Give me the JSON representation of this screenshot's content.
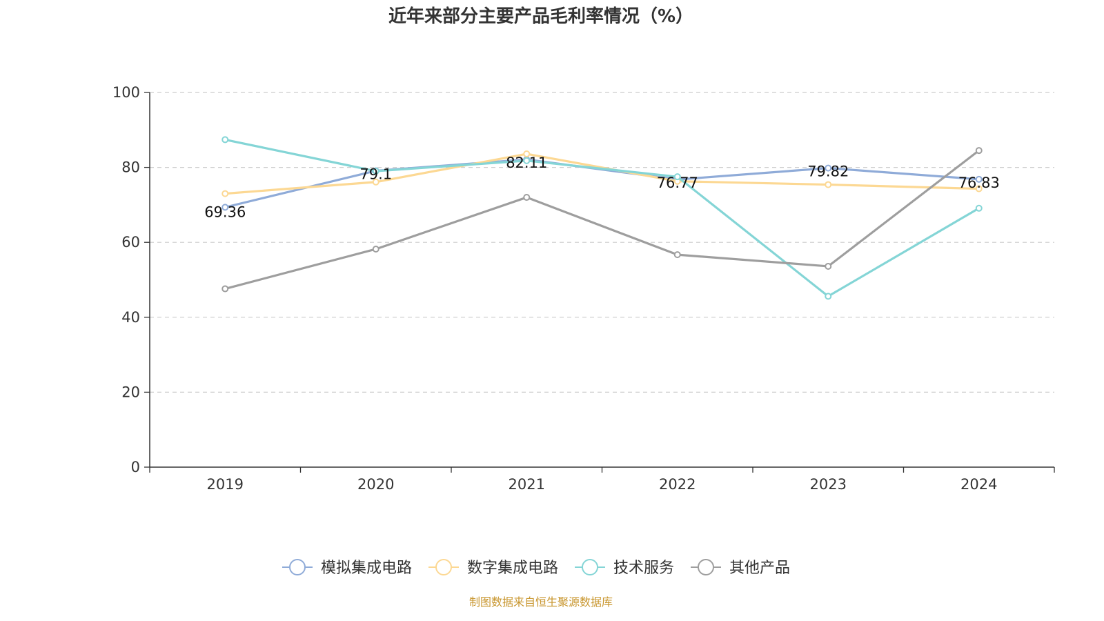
{
  "chart_data": {
    "type": "line",
    "title": "近年来部分主要产品毛利率情况（%）",
    "xlabel": "",
    "ylabel": "",
    "categories": [
      "2019",
      "2020",
      "2021",
      "2022",
      "2023",
      "2024"
    ],
    "ylim": [
      0,
      100
    ],
    "yticks": [
      0,
      20,
      40,
      60,
      80,
      100
    ],
    "grid": true,
    "legend_position": "bottom",
    "series": [
      {
        "name": "模拟集成电路",
        "color": "#8fabd8",
        "values": [
          69.36,
          79.1,
          82.11,
          76.77,
          79.82,
          76.83
        ],
        "labels": [
          "69.36",
          "79.1",
          "82.11",
          "76.77",
          "79.82",
          "76.83"
        ]
      },
      {
        "name": "数字集成电路",
        "color": "#fcd893",
        "values": [
          73.0,
          76.1,
          83.6,
          76.3,
          75.4,
          74.3
        ]
      },
      {
        "name": "技术服务",
        "color": "#84d5d6",
        "values": [
          87.4,
          79.0,
          81.8,
          77.5,
          45.6,
          69.1
        ]
      },
      {
        "name": "其他产品",
        "color": "#9e9e9e",
        "values": [
          47.6,
          58.2,
          72.0,
          56.7,
          53.6,
          84.5
        ]
      }
    ],
    "source": "制图数据来自恒生聚源数据库"
  }
}
